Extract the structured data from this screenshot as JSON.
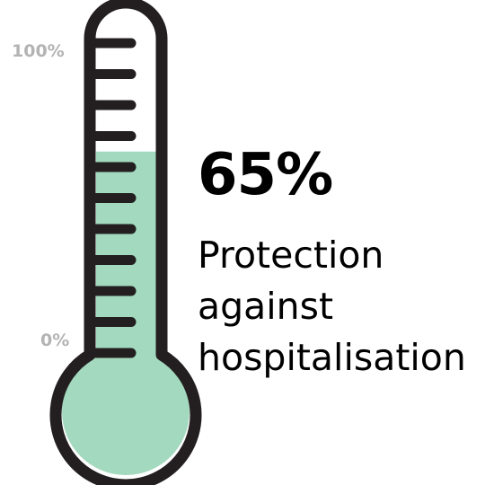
{
  "scale": {
    "max_label": "100%",
    "min_label": "0%"
  },
  "reading": {
    "value_label": "65%",
    "fraction": 0.65,
    "caption_lines": [
      "Protection",
      "against",
      "hospitalisation"
    ]
  },
  "colors": {
    "fill": "#a3d9be",
    "outline": "#231f20",
    "scale_text": "#b3b3b3"
  },
  "tick_count": 11
}
